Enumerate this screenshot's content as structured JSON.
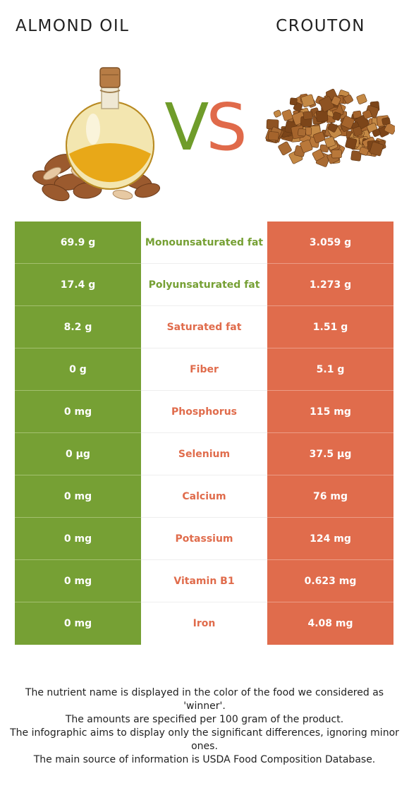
{
  "header": {
    "left_food": "ALMOND OIL",
    "right_food": "CROUTON",
    "vs_v": "V",
    "vs_s": "S"
  },
  "colors": {
    "left_accent": "#76a034",
    "right_accent": "#e06c4c"
  },
  "rows": [
    {
      "nutrient": "Monounsaturated fat",
      "left": "69.9 g",
      "right": "3.059 g",
      "winner": "left"
    },
    {
      "nutrient": "Polyunsaturated fat",
      "left": "17.4 g",
      "right": "1.273 g",
      "winner": "left"
    },
    {
      "nutrient": "Saturated fat",
      "left": "8.2 g",
      "right": "1.51 g",
      "winner": "right"
    },
    {
      "nutrient": "Fiber",
      "left": "0 g",
      "right": "5.1 g",
      "winner": "right"
    },
    {
      "nutrient": "Phosphorus",
      "left": "0 mg",
      "right": "115 mg",
      "winner": "right"
    },
    {
      "nutrient": "Selenium",
      "left": "0 µg",
      "right": "37.5 µg",
      "winner": "right"
    },
    {
      "nutrient": "Calcium",
      "left": "0 mg",
      "right": "76 mg",
      "winner": "right"
    },
    {
      "nutrient": "Potassium",
      "left": "0 mg",
      "right": "124 mg",
      "winner": "right"
    },
    {
      "nutrient": "Vitamin B1",
      "left": "0 mg",
      "right": "0.623 mg",
      "winner": "right"
    },
    {
      "nutrient": "Iron",
      "left": "0 mg",
      "right": "4.08 mg",
      "winner": "right"
    }
  ],
  "footer": [
    "The nutrient name is displayed in the color of the food we considered as 'winner'.",
    "The amounts are specified per 100 gram of the product.",
    "The infographic aims to display only the significant differences, ignoring minor ones.",
    "The main source of information is USDA Food Composition Database."
  ]
}
